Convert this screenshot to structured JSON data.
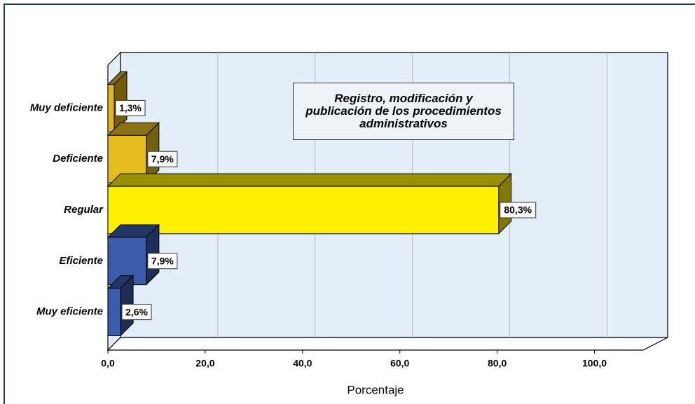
{
  "chart_data": {
    "type": "bar3d-horizontal",
    "title": "Registro, modificación y publicación de los procedimientos administrativos",
    "x_label": "Porcentaje",
    "categories": [
      "Muy deficiente",
      "Deficiente",
      "Regular",
      "Eficiente",
      "Muy eficiente"
    ],
    "values": [
      1.3,
      7.9,
      80.3,
      7.9,
      2.6
    ],
    "value_labels": [
      "1,3%",
      "7,9%",
      "80,3%",
      "7,9%",
      "2,6%"
    ],
    "colors": [
      "#e3b613",
      "#e6bd1f",
      "#fff000",
      "#3b5bab",
      "#3b5bab"
    ],
    "xlim": [
      0,
      110
    ],
    "xticks": [
      {
        "value": 0,
        "label": "0,0"
      },
      {
        "value": 20,
        "label": "20,0"
      },
      {
        "value": 40,
        "label": "40,0"
      },
      {
        "value": 60,
        "label": "60,0"
      },
      {
        "value": 80,
        "label": "80,0"
      },
      {
        "value": 100,
        "label": "100,0"
      }
    ],
    "grid": true
  }
}
